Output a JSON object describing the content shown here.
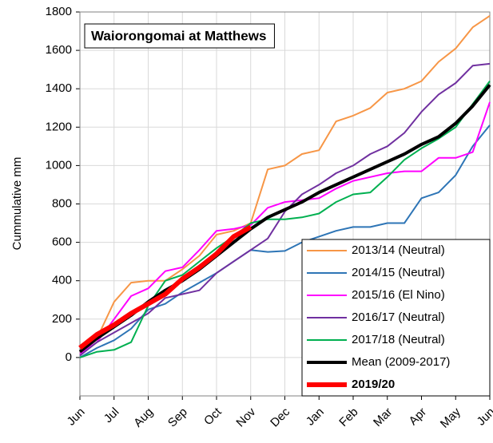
{
  "chart_data": {
    "type": "line",
    "title": "Waiorongomai at Matthews",
    "y_label": "Cummulative mm",
    "categories": [
      "Jun",
      null,
      "Jul",
      null,
      "Aug",
      null,
      "Sep",
      null,
      "Oct",
      null,
      "Nov",
      null,
      "Dec",
      null,
      "Jan",
      null,
      "Feb",
      null,
      "Mar",
      null,
      "Apr",
      null,
      "May",
      null,
      "Jun"
    ],
    "ylim": [
      -200,
      1800
    ],
    "yticks": [
      0,
      200,
      400,
      600,
      800,
      1000,
      1200,
      1400,
      1600,
      1800
    ],
    "grid": true,
    "legend": "lower right",
    "series": [
      {
        "name": "2013/14 (Neutral)",
        "color": "#f79646",
        "width": 2,
        "values": [
          30,
          100,
          290,
          390,
          400,
          400,
          460,
          530,
          640,
          660,
          700,
          980,
          1000,
          1060,
          1080,
          1230,
          1260,
          1300,
          1380,
          1400,
          1440,
          1540,
          1610,
          1720,
          1780
        ]
      },
      {
        "name": "2014/15 (Neutral)",
        "color": "#2e75b6",
        "width": 2,
        "values": [
          0,
          50,
          90,
          150,
          250,
          280,
          340,
          390,
          440,
          500,
          560,
          550,
          555,
          600,
          630,
          660,
          680,
          680,
          700,
          700,
          830,
          860,
          950,
          1100,
          1210
        ]
      },
      {
        "name": "2015/16 (El Nino)",
        "color": "#ff00ff",
        "width": 2,
        "values": [
          20,
          80,
          200,
          320,
          360,
          450,
          470,
          560,
          660,
          670,
          690,
          780,
          810,
          820,
          830,
          880,
          920,
          940,
          960,
          970,
          970,
          1040,
          1040,
          1070,
          1330
        ]
      },
      {
        "name": "2016/17 (Neutral)",
        "color": "#7030a0",
        "width": 2,
        "values": [
          10,
          80,
          130,
          180,
          230,
          310,
          330,
          350,
          440,
          500,
          560,
          620,
          760,
          850,
          900,
          960,
          1000,
          1060,
          1100,
          1170,
          1280,
          1370,
          1430,
          1520,
          1530
        ]
      },
      {
        "name": "2017/18 (Neutral)",
        "color": "#00b050",
        "width": 2,
        "values": [
          0,
          30,
          40,
          80,
          270,
          400,
          430,
          500,
          570,
          630,
          700,
          720,
          720,
          730,
          750,
          810,
          850,
          860,
          940,
          1030,
          1090,
          1140,
          1200,
          1320,
          1440
        ]
      },
      {
        "name": "Mean (2009-2017)",
        "color": "#000000",
        "width": 4,
        "values": [
          30,
          100,
          160,
          220,
          290,
          350,
          400,
          460,
          530,
          600,
          670,
          730,
          770,
          810,
          860,
          900,
          940,
          980,
          1020,
          1060,
          1110,
          1150,
          1220,
          1310,
          1420
        ]
      },
      {
        "name": "2019/20",
        "color": "#ff0000",
        "width": 6,
        "values": [
          50,
          120,
          170,
          230,
          280,
          330,
          410,
          470,
          540,
          630,
          680,
          null,
          null,
          null,
          null,
          null,
          null,
          null,
          null,
          null,
          null,
          null,
          null,
          null,
          null
        ]
      }
    ]
  }
}
